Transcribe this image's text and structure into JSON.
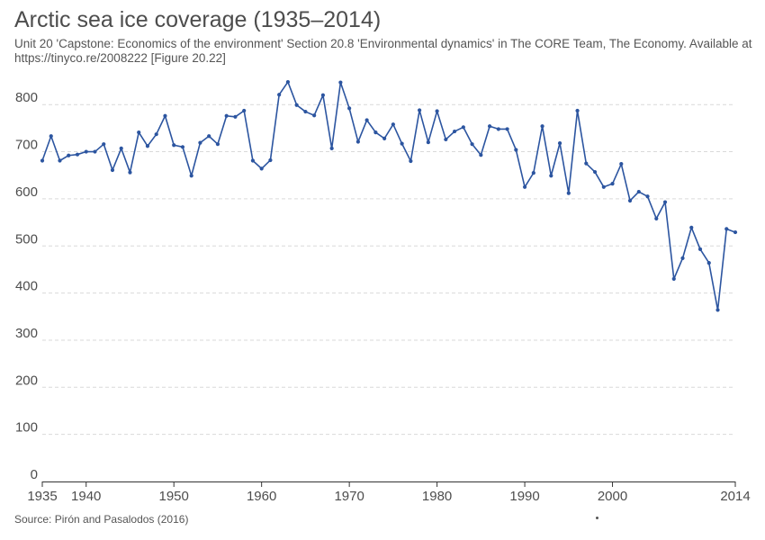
{
  "title": "Arctic sea ice coverage (1935–2014)",
  "subtitle": "Unit 20 'Capstone: Economics of the environment' Section 20.8 'Environmental dynamics' in The CORE Team, The Economy. Available at https://tinyco.re/2008222 [Figure 20.22]",
  "source": "Source: Pirón and Pasalodos (2016)",
  "colors": {
    "line": "#2c55a0",
    "grid": "#d9d9d9",
    "axis": "#333333"
  },
  "chart_data": {
    "type": "line",
    "title": "Arctic sea ice coverage (1935–2014)",
    "xlabel": "",
    "ylabel": "",
    "xlim": [
      1935,
      2014
    ],
    "ylim": [
      0,
      850
    ],
    "grid": "horizontal dashed",
    "legend": "none",
    "x_ticks": [
      1935,
      1940,
      1950,
      1960,
      1970,
      1980,
      1990,
      2000,
      2014
    ],
    "y_ticks": [
      0,
      100,
      200,
      300,
      400,
      500,
      600,
      700,
      800
    ],
    "series": [
      {
        "x": [
          1935,
          1936,
          1937,
          1938,
          1939,
          1940,
          1941,
          1942,
          1943,
          1944,
          1945,
          1946,
          1947,
          1948,
          1949,
          1950,
          1951,
          1952,
          1953,
          1954,
          1955,
          1956,
          1957,
          1958,
          1959,
          1960,
          1961,
          1962,
          1963,
          1964,
          1965,
          1966,
          1967,
          1968,
          1969,
          1970,
          1971,
          1972,
          1973,
          1974,
          1975,
          1976,
          1977,
          1978,
          1979,
          1980,
          1981,
          1982,
          1983,
          1984,
          1985,
          1986,
          1987,
          1988,
          1989,
          1990,
          1991,
          1992,
          1993,
          1994,
          1995,
          1996,
          1997,
          1998,
          1999,
          2000,
          2001,
          2002,
          2003,
          2004,
          2005,
          2006,
          2007,
          2008,
          2009,
          2010,
          2011,
          2012,
          2013,
          2014
        ],
        "values": [
          681,
          733,
          681,
          692,
          694,
          700,
          700,
          716,
          661,
          707,
          656,
          741,
          712,
          737,
          776,
          714,
          710,
          649,
          719,
          733,
          716,
          776,
          774,
          787,
          681,
          664,
          682,
          821,
          848,
          799,
          785,
          777,
          820,
          707,
          847,
          792,
          721,
          767,
          741,
          728,
          758,
          717,
          680,
          788,
          720,
          786,
          726,
          743,
          752,
          716,
          693,
          754,
          748,
          748,
          704,
          625,
          655,
          754,
          649,
          718,
          612,
          787,
          675,
          657,
          625,
          632,
          674,
          596,
          615,
          605,
          558,
          593,
          430,
          474,
          539,
          493,
          464,
          364,
          536,
          529
        ]
      }
    ]
  }
}
